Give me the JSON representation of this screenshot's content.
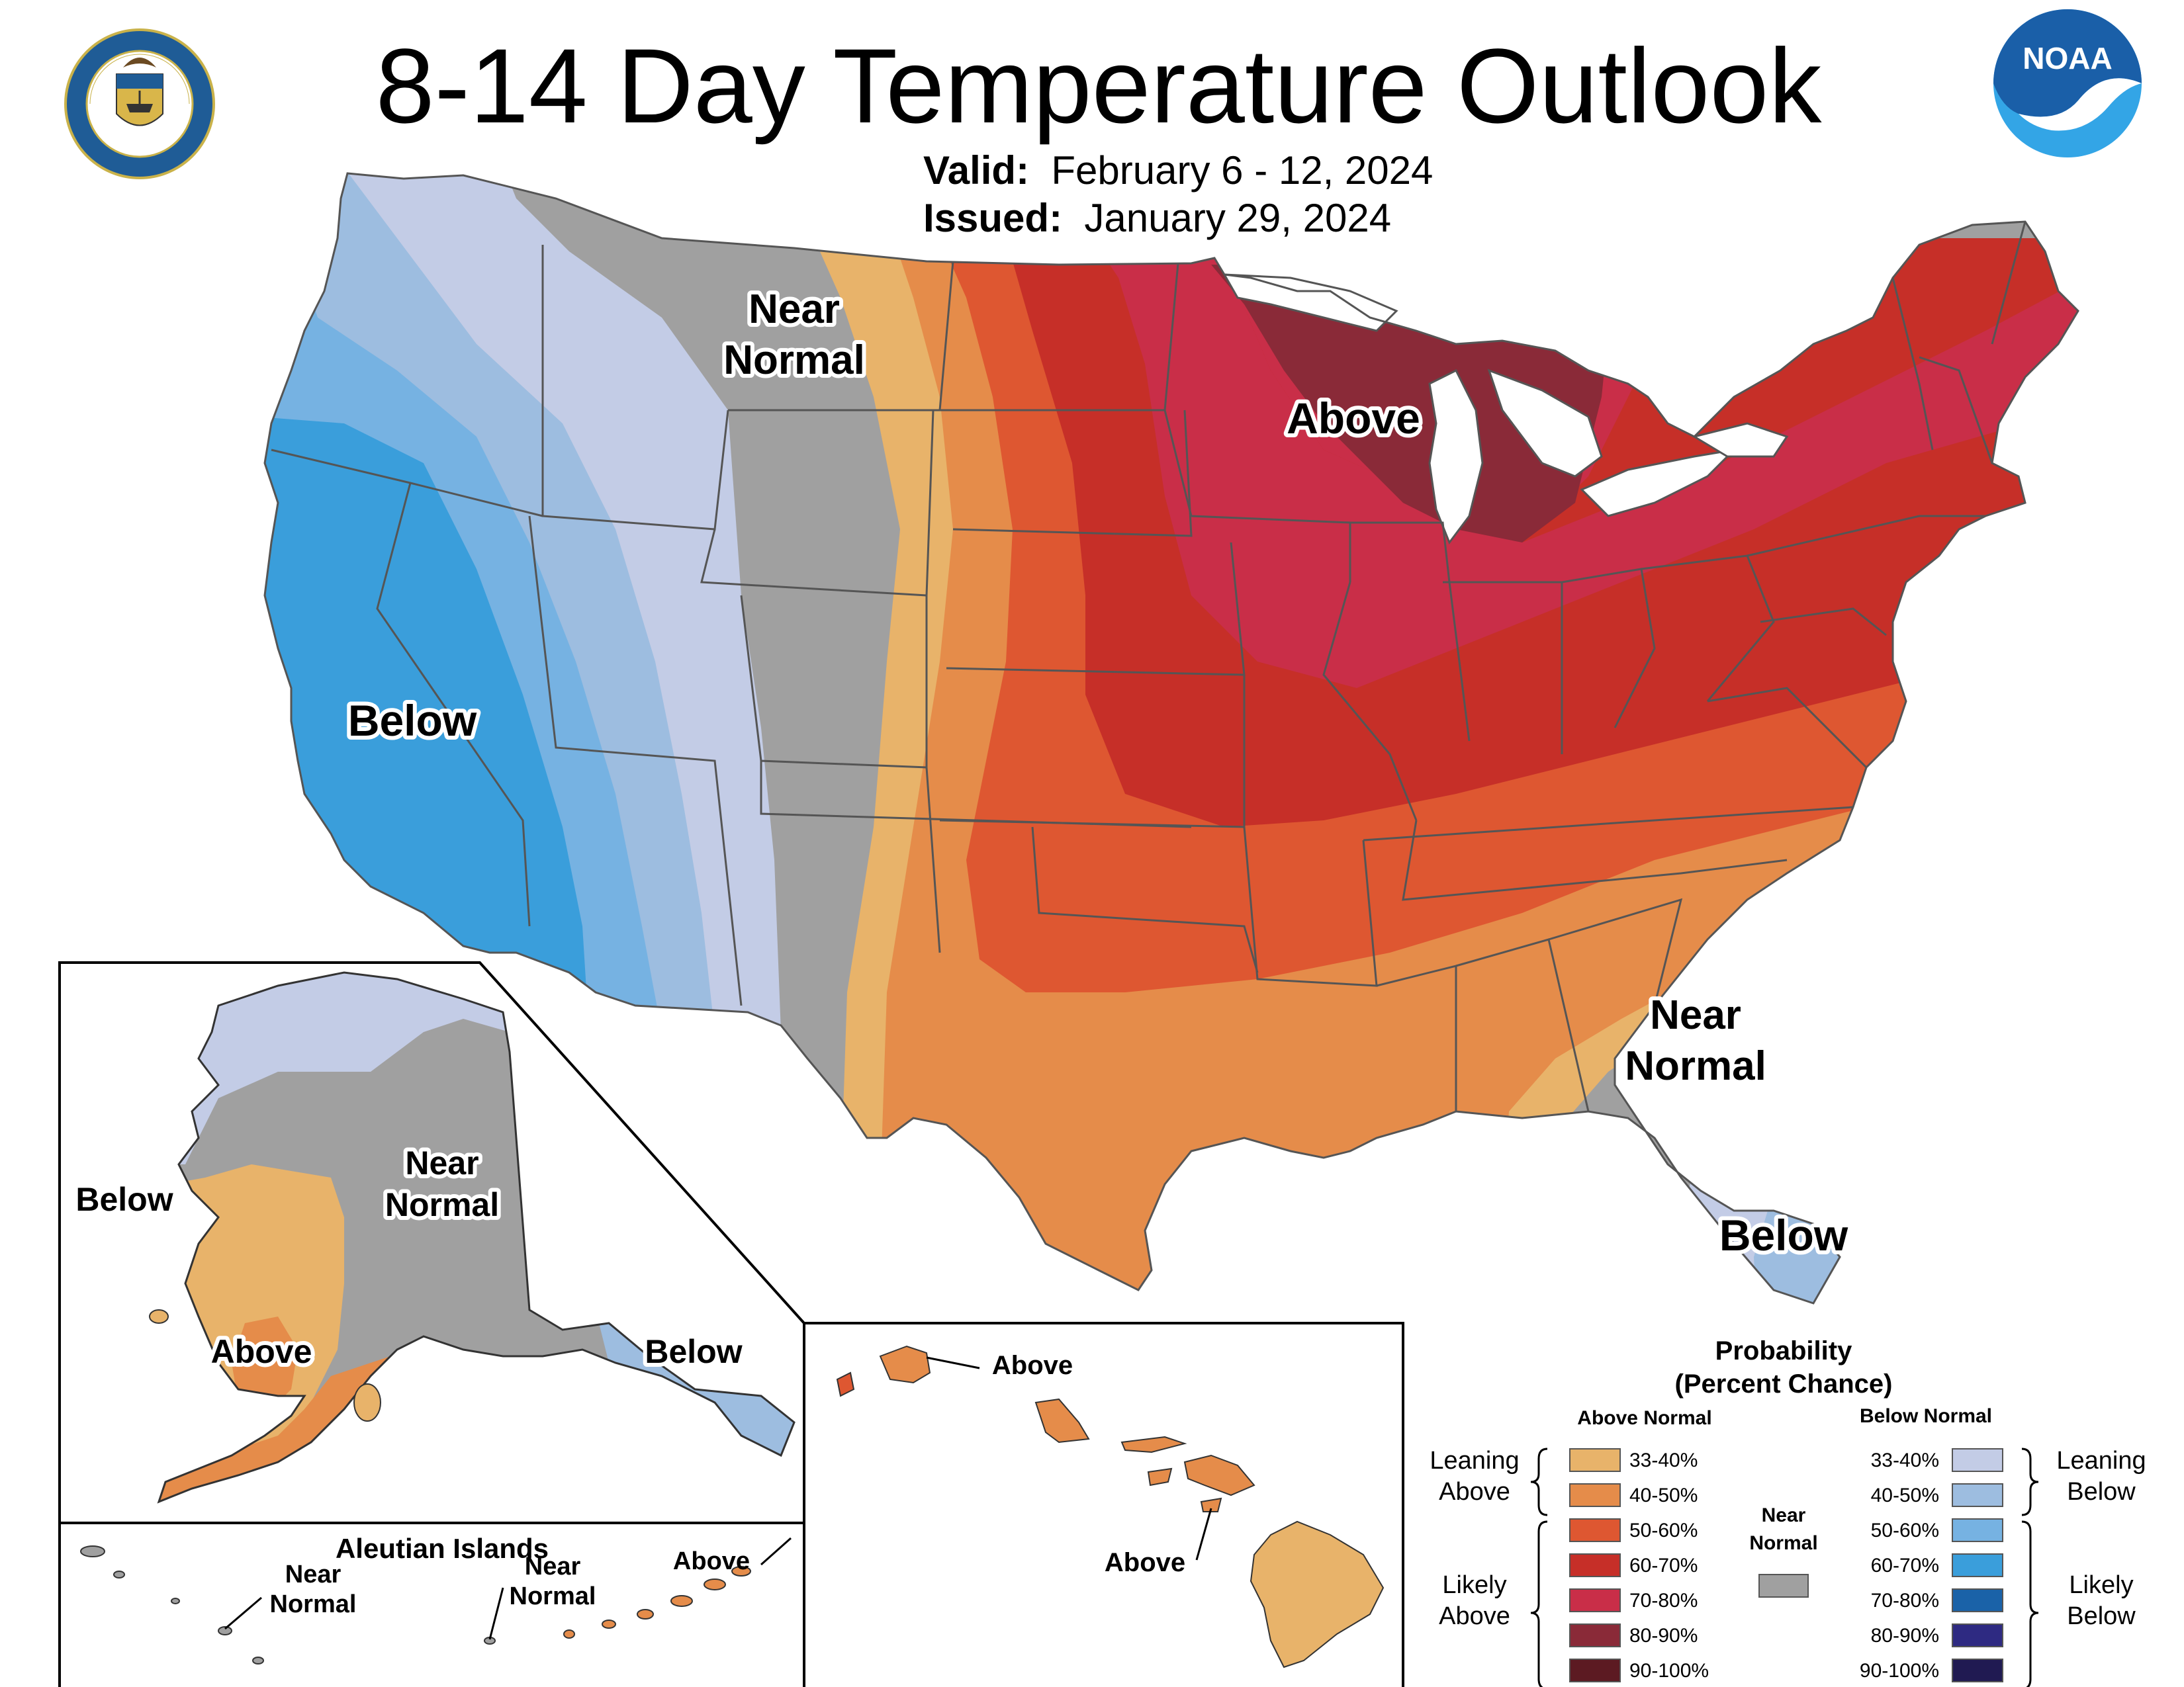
{
  "header": {
    "title": "8-14 Day Temperature Outlook",
    "valid_label": "Valid:",
    "valid_dates": "February 6 - 12, 2024",
    "issued_label": "Issued:",
    "issued_date": "January 29, 2024"
  },
  "logos": {
    "doc_seal": "department-of-commerce-seal",
    "noaa": "NOAA",
    "noaa_colors": {
      "dark": "#1a5fa8",
      "light": "#33a5e6"
    }
  },
  "conus_labels": {
    "near_normal_west": [
      "Near",
      "Normal"
    ],
    "above": "Above",
    "below_west": "Below",
    "near_normal_southeast": [
      "Near",
      "Normal"
    ],
    "below_florida": "Below"
  },
  "alaska_labels": {
    "below_west": "Below",
    "near_normal": [
      "Near",
      "Normal"
    ],
    "above": "Above",
    "below_southeast": "Below"
  },
  "aleutian": {
    "title": "Aleutian Islands",
    "near_normal_1": [
      "Near",
      "Normal"
    ],
    "near_normal_2": [
      "Near",
      "Normal"
    ],
    "above": "Above"
  },
  "hawaii_labels": {
    "above_north": "Above",
    "above_south": "Above"
  },
  "legend": {
    "title": [
      "Probability",
      "(Percent Chance)"
    ],
    "above_header": "Above Normal",
    "below_header": "Below Normal",
    "near_header": [
      "Near",
      "Normal"
    ],
    "leaning_above": [
      "Leaning",
      "Above"
    ],
    "likely_above": [
      "Likely",
      "Above"
    ],
    "leaning_below": [
      "Leaning",
      "Below"
    ],
    "likely_below": [
      "Likely",
      "Below"
    ],
    "ranges": [
      "33-40%",
      "40-50%",
      "50-60%",
      "60-70%",
      "70-80%",
      "80-90%",
      "90-100%"
    ],
    "above_colors": [
      "#e8b36a",
      "#e58c4a",
      "#de5731",
      "#c62f28",
      "#c92e48",
      "#8a2a38",
      "#5c1a22"
    ],
    "below_colors": [
      "#c3cce6",
      "#9dbde0",
      "#76b2e2",
      "#3a9edb",
      "#1a62a8",
      "#2e2a82",
      "#201a52"
    ],
    "near_color": "#a0a0a0"
  },
  "colors": {
    "near_normal": "#a0a0a0",
    "state_lines": "#555555",
    "water": "#ffffff"
  }
}
